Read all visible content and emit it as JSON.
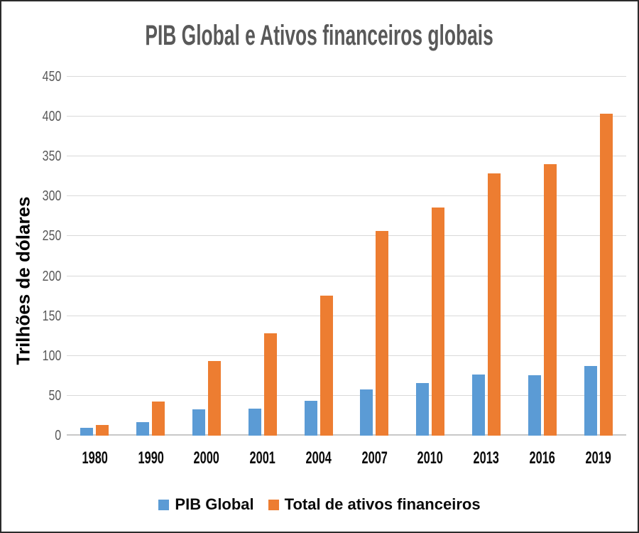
{
  "chart_data": {
    "type": "bar",
    "title": "PIB Global e Ativos financeiros globais",
    "xlabel": "",
    "ylabel": "Trilhões de dólares",
    "categories": [
      "1980",
      "1990",
      "2000",
      "2001",
      "2004",
      "2007",
      "2010",
      "2013",
      "2016",
      "2019"
    ],
    "series": [
      {
        "name": "PIB Global",
        "color": "#5B9BD5",
        "values": [
          10,
          17,
          33,
          34,
          44,
          58,
          66,
          77,
          76,
          87
        ]
      },
      {
        "name": "Total de ativos financeiros",
        "color": "#ED7D31",
        "values": [
          13,
          43,
          94,
          128,
          176,
          257,
          286,
          329,
          340,
          404
        ]
      }
    ],
    "ylim": [
      0,
      450
    ],
    "yticks": [
      0,
      50,
      100,
      150,
      200,
      250,
      300,
      350,
      400,
      450
    ],
    "grid": true,
    "legend_position": "bottom"
  },
  "colors": {
    "title_text": "#595959",
    "y_tick_text": "#595959",
    "x_tick_text": "#0a0a0a",
    "gridline": "#d9d9d9",
    "background": "#ffffff",
    "frame_border": "#2b2b2b",
    "series_blue": "#5B9BD5",
    "series_orange": "#ED7D31"
  }
}
